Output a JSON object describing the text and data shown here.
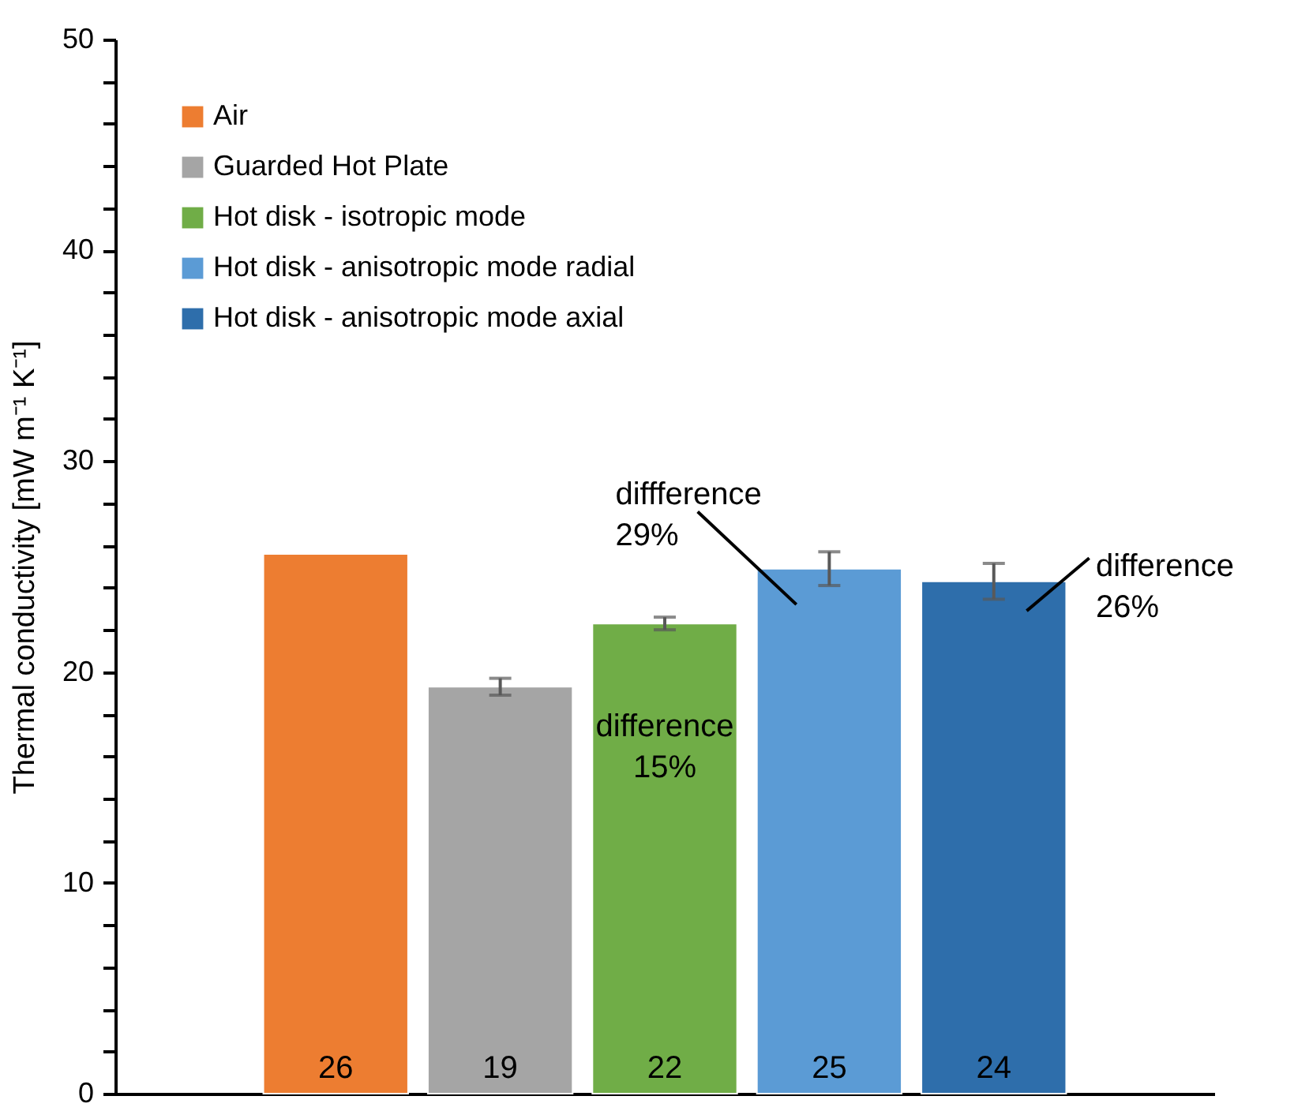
{
  "chart_data": {
    "type": "bar",
    "ylabel": "Thermal conductivity [mW m⁻¹ K⁻¹]",
    "categories": [
      null,
      null,
      null,
      null,
      null
    ],
    "series": [
      {
        "name": "Air",
        "color": "#ed7d31",
        "values": [
          25.6,
          null,
          null,
          null,
          null
        ],
        "value_labels": [
          "26",
          null,
          null,
          null,
          null
        ]
      },
      {
        "name": "Guarded Hot Plate",
        "color": "#a5a5a5",
        "values": [
          null,
          19.3,
          null,
          null,
          null
        ],
        "errors": [
          null,
          0.4,
          null,
          null,
          null
        ],
        "value_labels": [
          null,
          "19",
          null,
          null,
          null
        ]
      },
      {
        "name": "Hot disk - isotropic mode",
        "color": "#70ad47",
        "values": [
          null,
          null,
          22.3,
          null,
          null
        ],
        "errors": [
          null,
          null,
          0.3,
          null,
          null
        ],
        "value_labels": [
          null,
          null,
          "22",
          null,
          null
        ]
      },
      {
        "name": "Hot disk - anisotropic mode radial",
        "color": "#5b9bd5",
        "values": [
          null,
          null,
          null,
          24.9,
          null
        ],
        "errors": [
          null,
          null,
          null,
          0.8,
          null
        ],
        "value_labels": [
          null,
          null,
          null,
          "25",
          null
        ]
      },
      {
        "name": "Hot disk - anisotropic mode axial",
        "color": "#2e6eab",
        "values": [
          null,
          null,
          null,
          null,
          24.3
        ],
        "errors": [
          null,
          null,
          null,
          null,
          0.85
        ],
        "value_labels": [
          null,
          null,
          null,
          null,
          "24"
        ]
      }
    ],
    "ylim": [
      0,
      50
    ],
    "yticks": [
      0,
      {
        "value": 2,
        "label": null
      },
      {
        "value": 4,
        "label": null
      },
      {
        "value": 6,
        "label": null
      },
      {
        "value": 8,
        "label": null
      },
      10,
      {
        "value": 12,
        "label": null
      },
      {
        "value": 14,
        "label": null
      },
      {
        "value": 16,
        "label": null
      },
      {
        "value": 18,
        "label": null
      },
      20,
      {
        "value": 22,
        "label": null
      },
      {
        "value": 24,
        "label": null
      },
      {
        "value": 26,
        "label": null
      },
      {
        "value": 28,
        "label": null
      },
      30,
      {
        "value": 32,
        "label": null
      },
      {
        "value": 34,
        "label": null
      },
      {
        "value": 36,
        "label": null
      },
      {
        "value": 38,
        "label": null
      },
      40,
      {
        "value": 42,
        "label": null
      },
      {
        "value": 44,
        "label": null
      },
      {
        "value": 46,
        "label": null
      },
      {
        "value": 48,
        "label": null
      },
      50
    ],
    "annotations": [
      "difference 15%",
      "diffference 29%",
      "difference 26%"
    ],
    "tick_labels": "y",
    "grid": false,
    "legend": "top left"
  }
}
